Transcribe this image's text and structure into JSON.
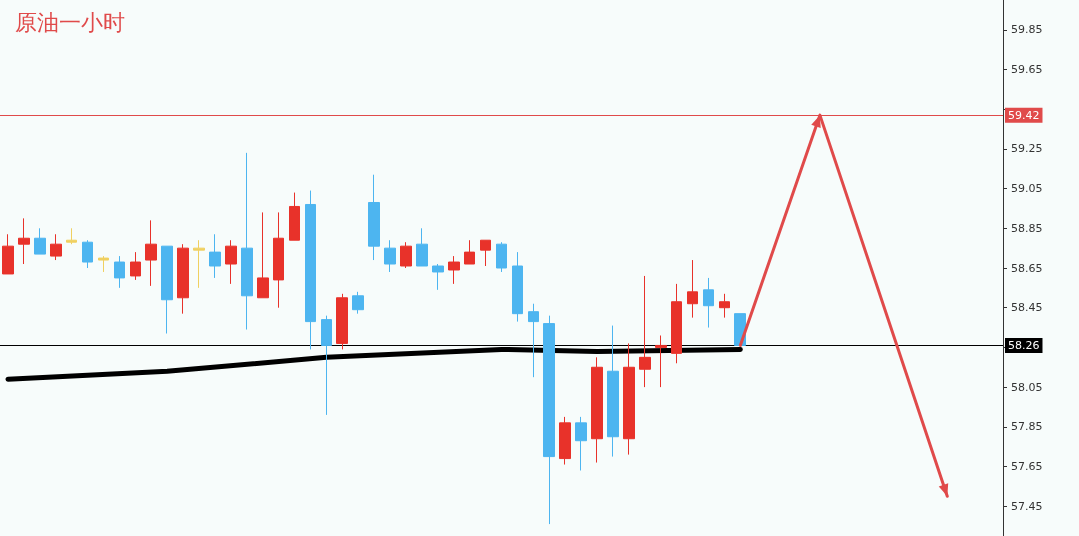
{
  "chart_data": {
    "type": "candlestick",
    "title": "原油一小时",
    "categories": [
      null,
      null,
      null,
      null,
      null,
      null,
      null,
      null,
      null,
      null,
      null,
      null,
      null,
      null,
      null,
      null,
      null,
      null,
      null,
      null,
      null,
      null,
      null,
      null,
      null,
      null,
      null,
      null,
      null,
      null,
      null,
      null,
      null,
      null,
      null,
      null,
      null,
      null,
      null,
      null,
      null,
      null,
      null,
      null,
      null,
      null,
      null,
      null,
      null,
      null,
      null,
      null,
      null,
      null,
      null,
      null,
      null,
      null,
      null,
      null,
      null,
      null,
      null
    ],
    "series": [
      {
        "type": "candlestick",
        "ohlc": [
          [
            58.62,
            58.82,
            58.62,
            58.76
          ],
          [
            58.77,
            58.9,
            58.67,
            58.8
          ],
          [
            58.8,
            58.85,
            58.72,
            58.72
          ],
          [
            58.71,
            58.82,
            58.69,
            58.77
          ],
          [
            58.78,
            58.85,
            58.77,
            58.79
          ],
          [
            58.78,
            58.79,
            58.65,
            58.68
          ],
          [
            58.7,
            58.71,
            58.63,
            58.69
          ],
          [
            58.68,
            58.71,
            58.55,
            58.6
          ],
          [
            58.61,
            58.73,
            58.59,
            58.68
          ],
          [
            58.69,
            58.89,
            58.56,
            58.77
          ],
          [
            58.76,
            58.76,
            58.32,
            58.49
          ],
          [
            58.5,
            58.77,
            58.42,
            58.75
          ],
          [
            58.74,
            58.79,
            58.55,
            58.75
          ],
          [
            58.73,
            58.82,
            58.6,
            58.66
          ],
          [
            58.67,
            58.79,
            58.57,
            58.76
          ],
          [
            58.75,
            59.23,
            58.34,
            58.51
          ],
          [
            58.5,
            58.93,
            58.5,
            58.6
          ],
          [
            58.59,
            58.93,
            58.45,
            58.8
          ],
          [
            58.79,
            59.03,
            58.79,
            58.96
          ],
          [
            58.97,
            59.04,
            58.24,
            58.38
          ],
          [
            58.39,
            58.41,
            57.91,
            58.26
          ],
          [
            58.27,
            58.52,
            58.24,
            58.5
          ],
          [
            58.51,
            58.53,
            58.42,
            58.44
          ],
          [
            58.98,
            59.12,
            58.69,
            58.76
          ],
          [
            58.75,
            58.79,
            58.63,
            58.67
          ],
          [
            58.66,
            58.78,
            58.65,
            58.76
          ],
          [
            58.77,
            58.85,
            58.66,
            58.66
          ],
          [
            58.66,
            58.67,
            58.54,
            58.63
          ],
          [
            58.64,
            58.71,
            58.57,
            58.68
          ],
          [
            58.67,
            58.79,
            58.67,
            58.73
          ],
          [
            58.74,
            58.79,
            58.66,
            58.79
          ],
          [
            58.77,
            58.78,
            58.63,
            58.65
          ],
          [
            58.66,
            58.73,
            58.38,
            58.42
          ],
          [
            58.43,
            58.47,
            58.1,
            58.38
          ],
          [
            58.37,
            58.41,
            57.36,
            57.7
          ],
          [
            57.69,
            57.9,
            57.66,
            57.87
          ],
          [
            57.87,
            57.9,
            57.63,
            57.78
          ],
          [
            57.79,
            58.2,
            57.67,
            58.15
          ],
          [
            58.13,
            58.36,
            57.7,
            57.8
          ],
          [
            57.79,
            58.27,
            57.71,
            58.15
          ],
          [
            58.14,
            58.61,
            58.05,
            58.2
          ],
          [
            58.25,
            58.31,
            58.05,
            58.26
          ],
          [
            58.22,
            58.57,
            58.17,
            58.48
          ],
          [
            58.47,
            58.69,
            58.4,
            58.53
          ],
          [
            58.54,
            58.6,
            58.35,
            58.46
          ],
          [
            58.45,
            58.52,
            58.4,
            58.48
          ],
          [
            58.42,
            58.42,
            58.26,
            58.26
          ],
          null,
          null,
          null,
          null,
          null,
          null,
          null,
          null,
          null,
          null,
          null,
          null,
          null,
          null,
          null,
          null
        ],
        "colors": [
          "#e8322a",
          "#e8322a",
          "#4db5f0",
          "#e8322a",
          "#f0d060",
          "#4db5f0",
          "#f0d060",
          "#4db5f0",
          "#e8322a",
          "#e8322a",
          "#4db5f0",
          "#e8322a",
          "#f0d060",
          "#4db5f0",
          "#e8322a",
          "#4db5f0",
          "#e8322a",
          "#e8322a",
          "#e8322a",
          "#4db5f0",
          "#4db5f0",
          "#e8322a",
          "#4db5f0",
          "#4db5f0",
          "#4db5f0",
          "#e8322a",
          "#4db5f0",
          "#4db5f0",
          "#e8322a",
          "#e8322a",
          "#e8322a",
          "#4db5f0",
          "#4db5f0",
          "#4db5f0",
          "#4db5f0",
          "#e8322a",
          "#4db5f0",
          "#e8322a",
          "#4db5f0",
          "#e8322a",
          "#e8322a",
          "#e8322a",
          "#e8322a",
          "#e8322a",
          "#4db5f0",
          "#e8322a",
          "#4db5f0",
          null,
          null,
          null,
          null,
          null,
          null,
          null,
          null,
          null,
          null,
          null,
          null,
          null,
          null,
          null,
          null
        ]
      },
      {
        "type": "line",
        "values": [
          58.09,
          null,
          null,
          null,
          null,
          null,
          null,
          null,
          null,
          null,
          58.13,
          null,
          null,
          null,
          null,
          null,
          null,
          null,
          null,
          null,
          58.2,
          null,
          null,
          null,
          null,
          null,
          null,
          null,
          null,
          null,
          null,
          58.24,
          null,
          null,
          null,
          null,
          null,
          58.23,
          null,
          null,
          null,
          null,
          null,
          null,
          null,
          null,
          58.24,
          null,
          null,
          null,
          null,
          null,
          null,
          null,
          null,
          null,
          null,
          null,
          null,
          null,
          null,
          null,
          null
        ],
        "color": "#000000"
      },
      {
        "type": "line",
        "values": [
          null,
          null,
          null,
          null,
          null,
          null,
          null,
          null,
          null,
          null,
          null,
          null,
          null,
          null,
          null,
          null,
          null,
          null,
          null,
          null,
          null,
          null,
          null,
          null,
          null,
          null,
          null,
          null,
          null,
          null,
          null,
          null,
          null,
          null,
          null,
          null,
          null,
          null,
          null,
          null,
          null,
          null,
          null,
          null,
          null,
          null,
          58.26,
          null,
          null,
          null,
          null,
          59.42,
          null,
          null,
          null,
          null,
          null,
          null,
          null,
          57.5,
          null,
          null,
          null
        ],
        "color": "#e04a4a"
      }
    ],
    "ylim": [
      57.3,
      60.0
    ],
    "yticks": [
      57.45,
      57.65,
      57.85,
      58.05,
      {
        "value": 58.25,
        "label": null
      },
      58.45,
      58.65,
      58.85,
      59.05,
      59.25,
      {
        "value": 59.45,
        "label": null
      },
      59.65,
      59.85
    ],
    "ref_lines": [
      {
        "axis": "y",
        "value": 59.42,
        "label": "59.42",
        "color": "#e04a4a"
      },
      {
        "axis": "y",
        "value": 58.26,
        "label": "58.26",
        "color": "#000000"
      }
    ],
    "tick_labels": "y",
    "grid": false
  }
}
